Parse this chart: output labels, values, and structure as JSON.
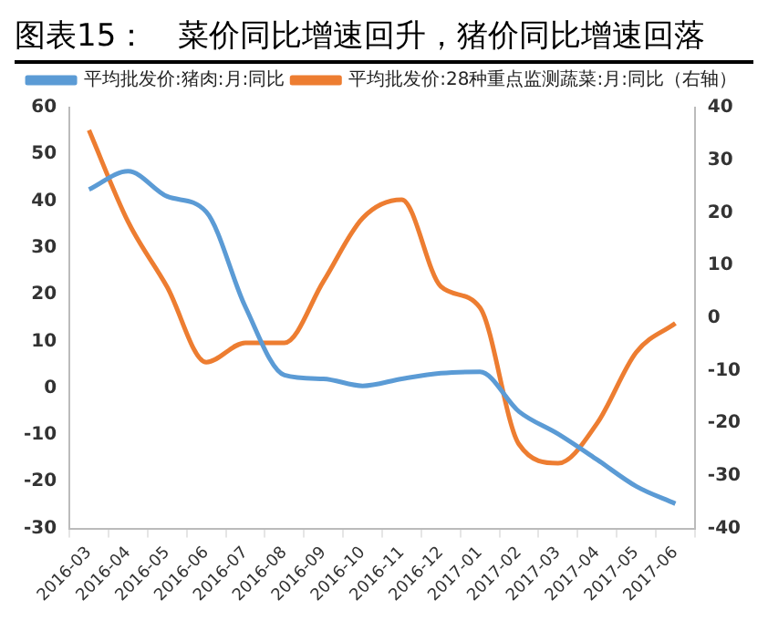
{
  "chart_data": {
    "type": "line",
    "title": "图表15：　菜价同比增速回升，猪价同比增速回落",
    "categories": [
      "2016-03",
      "2016-04",
      "2016-05",
      "2016-06",
      "2016-07",
      "2016-08",
      "2016-09",
      "2016-10",
      "2016-11",
      "2016-12",
      "2017-01",
      "2017-02",
      "2017-03",
      "2017-04",
      "2017-05",
      "2017-06"
    ],
    "series": [
      {
        "name": "平均批发价:猪肉:月:同比",
        "color": "#5b9bd5",
        "values": [
          42.5,
          46.4,
          41,
          37.7,
          17.4,
          2.8,
          2,
          0.5,
          2,
          3.2,
          3.5,
          -5,
          -9.8,
          -15.3,
          -21,
          -24.7
        ]
      },
      {
        "name": "平均批发价:28种重点监测蔬菜:月:同比（右轴）",
        "color": "#ed7d31",
        "axis": "y2",
        "values": [
          35.7,
          18.3,
          5.9,
          -8.4,
          -4.7,
          -4.7,
          7,
          19,
          22.5,
          6,
          2,
          -24,
          -27.6,
          -20,
          -6.5,
          -1
        ]
      }
    ],
    "ylim": [
      -30,
      60
    ],
    "yticks": [
      -30,
      -20,
      -10,
      0,
      10,
      20,
      30,
      40,
      50,
      60
    ],
    "y2lim": [
      -40,
      40
    ],
    "y2ticks": [
      -40,
      -30,
      -20,
      -10,
      0,
      10,
      20,
      30,
      40
    ],
    "grid": false,
    "legend": "top",
    "marker": "none",
    "line_style": "solid"
  }
}
